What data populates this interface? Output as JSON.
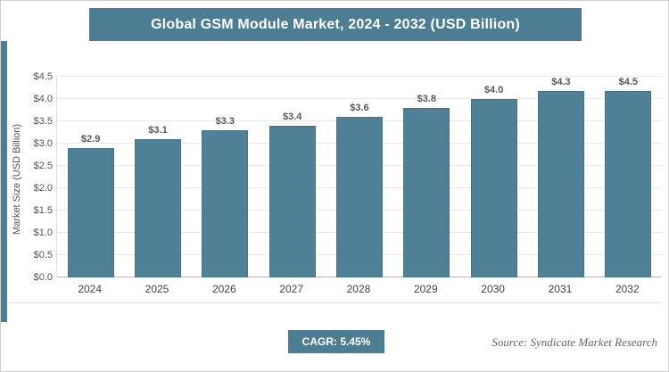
{
  "title": "Global GSM Module Market, 2024 - 2032 (USD Billion)",
  "ylabel": "Market Size (USD Billion)",
  "cagr_label": "CAGR: 5.45%",
  "source": "Source: Syndicate Market Research",
  "colors": {
    "accent": "#4d7d92",
    "bar": "#4f8095",
    "grid": "#e8e8e8",
    "value_label": "#595959"
  },
  "chart_data": {
    "type": "bar",
    "title": "Global GSM Module Market, 2024 - 2032 (USD Billion)",
    "categories": [
      "2024",
      "2025",
      "2026",
      "2027",
      "2028",
      "2029",
      "2030",
      "2031",
      "2032"
    ],
    "values": [
      2.9,
      3.1,
      3.3,
      3.4,
      3.6,
      3.8,
      4.0,
      4.3,
      4.5
    ],
    "data_labels": [
      "$2.9",
      "$3.1",
      "$3.3",
      "$3.4",
      "$3.6",
      "$3.8",
      "$4.0",
      "$4.3",
      "$4.5"
    ],
    "xlabel": "",
    "ylabel": "Market Size (USD Billion)",
    "ylim": [
      0,
      4.5
    ],
    "ytick_step": 0.5,
    "ytick_labels": [
      "$0.0",
      "$0.5",
      "$1.0",
      "$1.5",
      "$2.0",
      "$2.5",
      "$3.0",
      "$3.5",
      "$4.0",
      "$4.5"
    ],
    "grid": true,
    "legend": false
  }
}
